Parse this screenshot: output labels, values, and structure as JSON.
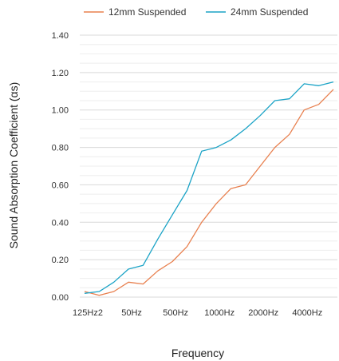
{
  "chart_data": {
    "type": "line",
    "title": "",
    "xlabel": "Frequency",
    "ylabel": "Sound Absorption Coefficient (αs)",
    "ylim": [
      0,
      1.4
    ],
    "yticks": [
      "0.00",
      "0.20",
      "0.40",
      "0.60",
      "0.80",
      "1.00",
      "1.20",
      "1.40"
    ],
    "x_tick_labels": [
      "125Hz2",
      "50Hz",
      "500Hz",
      "1000Hz",
      "2000Hz",
      "4000Hz"
    ],
    "x_tick_indices": [
      0,
      3,
      6,
      9,
      12,
      15
    ],
    "grid": true,
    "legend_position": "top",
    "series": [
      {
        "name": "12mm Suspended",
        "color": "#E8804F",
        "values": [
          0.03,
          0.01,
          0.03,
          0.08,
          0.07,
          0.14,
          0.19,
          0.27,
          0.4,
          0.5,
          0.58,
          0.6,
          0.7,
          0.8,
          0.87,
          1.0,
          1.03,
          1.11
        ]
      },
      {
        "name": "24mm Suspended",
        "color": "#1BA3C6",
        "values": [
          0.02,
          0.03,
          0.08,
          0.15,
          0.17,
          0.31,
          0.44,
          0.57,
          0.78,
          0.8,
          0.84,
          0.9,
          0.97,
          1.05,
          1.06,
          1.14,
          1.13,
          1.15
        ]
      }
    ]
  }
}
